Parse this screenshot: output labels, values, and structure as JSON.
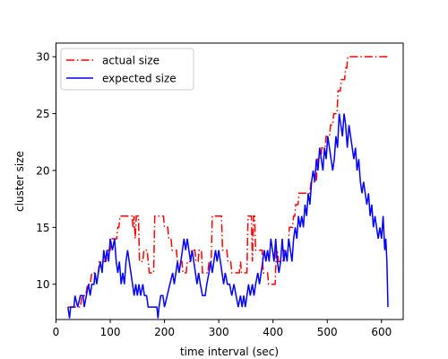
{
  "chart_data": {
    "type": "line",
    "xlabel": "time interval (sec)",
    "ylabel": "cluster size",
    "xlim": [
      0,
      640
    ],
    "ylim": [
      6.9,
      31.2
    ],
    "xticks": [
      0,
      100,
      200,
      300,
      400,
      500,
      600
    ],
    "yticks": [
      10,
      15,
      20,
      25,
      30
    ],
    "grid": false,
    "legend_position": "top-left",
    "series": [
      {
        "name": "actual size",
        "color": "#ff0000",
        "dash": "dashdot",
        "points": [
          [
            22,
            8
          ],
          [
            45,
            8
          ],
          [
            48,
            9
          ],
          [
            55,
            9
          ],
          [
            58,
            10
          ],
          [
            63,
            10
          ],
          [
            66,
            11
          ],
          [
            78,
            11
          ],
          [
            80,
            12
          ],
          [
            92,
            12
          ],
          [
            95,
            13
          ],
          [
            100,
            13
          ],
          [
            102,
            14
          ],
          [
            112,
            14
          ],
          [
            114,
            15
          ],
          [
            116,
            15
          ],
          [
            118,
            16
          ],
          [
            140,
            16
          ],
          [
            142,
            15
          ],
          [
            144,
            16
          ],
          [
            146,
            14
          ],
          [
            148,
            16
          ],
          [
            152,
            16
          ],
          [
            154,
            12
          ],
          [
            160,
            12
          ],
          [
            162,
            13
          ],
          [
            168,
            13
          ],
          [
            170,
            12
          ],
          [
            172,
            11
          ],
          [
            180,
            11
          ],
          [
            182,
            16
          ],
          [
            198,
            16
          ],
          [
            200,
            15
          ],
          [
            206,
            15
          ],
          [
            208,
            14
          ],
          [
            212,
            14
          ],
          [
            214,
            13
          ],
          [
            222,
            13
          ],
          [
            224,
            12
          ],
          [
            232,
            12
          ],
          [
            234,
            11
          ],
          [
            240,
            11
          ],
          [
            242,
            12
          ],
          [
            248,
            12
          ],
          [
            250,
            13
          ],
          [
            256,
            13
          ],
          [
            258,
            12
          ],
          [
            262,
            12
          ],
          [
            264,
            13
          ],
          [
            268,
            13
          ],
          [
            270,
            11
          ],
          [
            280,
            11
          ],
          [
            282,
            12
          ],
          [
            286,
            12
          ],
          [
            288,
            16
          ],
          [
            305,
            16
          ],
          [
            307,
            13
          ],
          [
            315,
            13
          ],
          [
            317,
            12
          ],
          [
            322,
            12
          ],
          [
            324,
            11
          ],
          [
            338,
            11
          ],
          [
            340,
            12
          ],
          [
            342,
            11
          ],
          [
            352,
            11
          ],
          [
            354,
            16
          ],
          [
            360,
            16
          ],
          [
            362,
            12
          ],
          [
            364,
            16
          ],
          [
            366,
            16
          ],
          [
            368,
            13
          ],
          [
            380,
            13
          ],
          [
            382,
            11
          ],
          [
            390,
            11
          ],
          [
            392,
            10
          ],
          [
            404,
            10
          ],
          [
            406,
            13
          ],
          [
            408,
            13
          ],
          [
            410,
            12
          ],
          [
            418,
            12
          ],
          [
            420,
            13
          ],
          [
            428,
            13
          ],
          [
            430,
            15
          ],
          [
            436,
            15
          ],
          [
            438,
            16
          ],
          [
            440,
            16
          ],
          [
            442,
            17
          ],
          [
            446,
            17
          ],
          [
            448,
            18
          ],
          [
            468,
            18
          ],
          [
            470,
            19
          ],
          [
            480,
            19
          ],
          [
            482,
            21
          ],
          [
            488,
            21
          ],
          [
            490,
            22
          ],
          [
            496,
            22
          ],
          [
            498,
            23
          ],
          [
            504,
            23
          ],
          [
            506,
            24
          ],
          [
            510,
            24
          ],
          [
            512,
            25
          ],
          [
            518,
            25
          ],
          [
            520,
            27
          ],
          [
            524,
            27
          ],
          [
            526,
            28
          ],
          [
            532,
            28
          ],
          [
            534,
            29
          ],
          [
            536,
            29
          ],
          [
            538,
            30
          ],
          [
            612,
            30
          ]
        ]
      },
      {
        "name": "expected size",
        "color": "#0000ff",
        "dash": "solid",
        "points": [
          [
            22,
            8
          ],
          [
            25,
            7
          ],
          [
            27,
            8
          ],
          [
            33,
            8
          ],
          [
            35,
            9
          ],
          [
            40,
            8
          ],
          [
            45,
            9
          ],
          [
            50,
            9
          ],
          [
            52,
            8
          ],
          [
            56,
            9
          ],
          [
            60,
            10
          ],
          [
            63,
            9
          ],
          [
            66,
            10
          ],
          [
            70,
            10
          ],
          [
            72,
            11
          ],
          [
            75,
            10
          ],
          [
            78,
            11
          ],
          [
            82,
            12
          ],
          [
            85,
            11
          ],
          [
            88,
            13
          ],
          [
            91,
            12
          ],
          [
            94,
            13
          ],
          [
            97,
            12
          ],
          [
            100,
            14
          ],
          [
            104,
            13
          ],
          [
            108,
            14
          ],
          [
            111,
            12
          ],
          [
            114,
            11
          ],
          [
            117,
            12
          ],
          [
            120,
            10
          ],
          [
            123,
            11
          ],
          [
            126,
            10
          ],
          [
            129,
            12
          ],
          [
            132,
            13
          ],
          [
            135,
            12
          ],
          [
            138,
            11
          ],
          [
            141,
            10
          ],
          [
            144,
            9
          ],
          [
            147,
            10
          ],
          [
            150,
            9
          ],
          [
            153,
            10
          ],
          [
            156,
            9
          ],
          [
            160,
            10
          ],
          [
            163,
            9
          ],
          [
            167,
            9
          ],
          [
            170,
            8
          ],
          [
            186,
            8
          ],
          [
            188,
            7
          ],
          [
            190,
            8
          ],
          [
            193,
            9
          ],
          [
            197,
            9
          ],
          [
            200,
            8
          ],
          [
            205,
            9
          ],
          [
            210,
            10
          ],
          [
            215,
            11
          ],
          [
            218,
            10
          ],
          [
            221,
            11
          ],
          [
            224,
            12
          ],
          [
            227,
            11
          ],
          [
            230,
            12
          ],
          [
            233,
            13
          ],
          [
            236,
            14
          ],
          [
            239,
            13
          ],
          [
            242,
            14
          ],
          [
            245,
            13
          ],
          [
            248,
            12
          ],
          [
            251,
            13
          ],
          [
            254,
            12
          ],
          [
            257,
            11
          ],
          [
            260,
            10
          ],
          [
            263,
            11
          ],
          [
            266,
            10
          ],
          [
            270,
            9
          ],
          [
            275,
            9
          ],
          [
            278,
            10
          ],
          [
            282,
            11
          ],
          [
            285,
            12
          ],
          [
            288,
            11
          ],
          [
            291,
            12
          ],
          [
            294,
            13
          ],
          [
            297,
            12
          ],
          [
            300,
            13
          ],
          [
            303,
            12
          ],
          [
            306,
            11
          ],
          [
            309,
            10
          ],
          [
            312,
            11
          ],
          [
            316,
            10
          ],
          [
            320,
            10
          ],
          [
            324,
            9
          ],
          [
            328,
            10
          ],
          [
            332,
            9
          ],
          [
            336,
            8
          ],
          [
            340,
            9
          ],
          [
            343,
            8
          ],
          [
            346,
            9
          ],
          [
            349,
            8
          ],
          [
            352,
            9
          ],
          [
            355,
            10
          ],
          [
            358,
            9
          ],
          [
            362,
            10
          ],
          [
            365,
            9
          ],
          [
            368,
            10
          ],
          [
            372,
            11
          ],
          [
            375,
            10
          ],
          [
            378,
            11
          ],
          [
            381,
            12
          ],
          [
            384,
            13
          ],
          [
            387,
            12
          ],
          [
            390,
            13
          ],
          [
            393,
            12
          ],
          [
            396,
            14
          ],
          [
            399,
            13
          ],
          [
            402,
            12
          ],
          [
            405,
            14
          ],
          [
            408,
            12
          ],
          [
            411,
            11
          ],
          [
            414,
            12
          ],
          [
            417,
            14
          ],
          [
            420,
            12
          ],
          [
            423,
            13
          ],
          [
            426,
            12
          ],
          [
            429,
            14
          ],
          [
            432,
            13
          ],
          [
            435,
            12
          ],
          [
            438,
            14
          ],
          [
            441,
            15
          ],
          [
            444,
            14
          ],
          [
            447,
            16
          ],
          [
            450,
            15
          ],
          [
            453,
            16
          ],
          [
            456,
            15
          ],
          [
            459,
            17
          ],
          [
            462,
            16
          ],
          [
            465,
            18
          ],
          [
            468,
            17
          ],
          [
            471,
            19
          ],
          [
            474,
            20
          ],
          [
            477,
            19
          ],
          [
            480,
            21
          ],
          [
            483,
            20
          ],
          [
            486,
            22
          ],
          [
            489,
            21
          ],
          [
            492,
            20
          ],
          [
            495,
            22
          ],
          [
            498,
            21
          ],
          [
            501,
            23
          ],
          [
            504,
            22
          ],
          [
            507,
            21
          ],
          [
            510,
            20
          ],
          [
            513,
            21
          ],
          [
            516,
            23
          ],
          [
            519,
            22
          ],
          [
            522,
            25
          ],
          [
            525,
            24
          ],
          [
            528,
            23
          ],
          [
            531,
            25
          ],
          [
            534,
            24
          ],
          [
            537,
            22
          ],
          [
            540,
            24
          ],
          [
            543,
            23
          ],
          [
            546,
            22
          ],
          [
            549,
            21
          ],
          [
            552,
            22
          ],
          [
            555,
            20
          ],
          [
            558,
            21
          ],
          [
            561,
            19
          ],
          [
            564,
            18
          ],
          [
            567,
            19
          ],
          [
            570,
            18
          ],
          [
            573,
            17
          ],
          [
            576,
            18
          ],
          [
            579,
            16
          ],
          [
            582,
            17
          ],
          [
            585,
            15
          ],
          [
            588,
            16
          ],
          [
            591,
            15
          ],
          [
            594,
            14
          ],
          [
            597,
            15
          ],
          [
            600,
            14
          ],
          [
            603,
            16
          ],
          [
            606,
            13
          ],
          [
            608,
            14
          ],
          [
            610,
            12
          ],
          [
            612,
            8
          ]
        ]
      }
    ]
  }
}
